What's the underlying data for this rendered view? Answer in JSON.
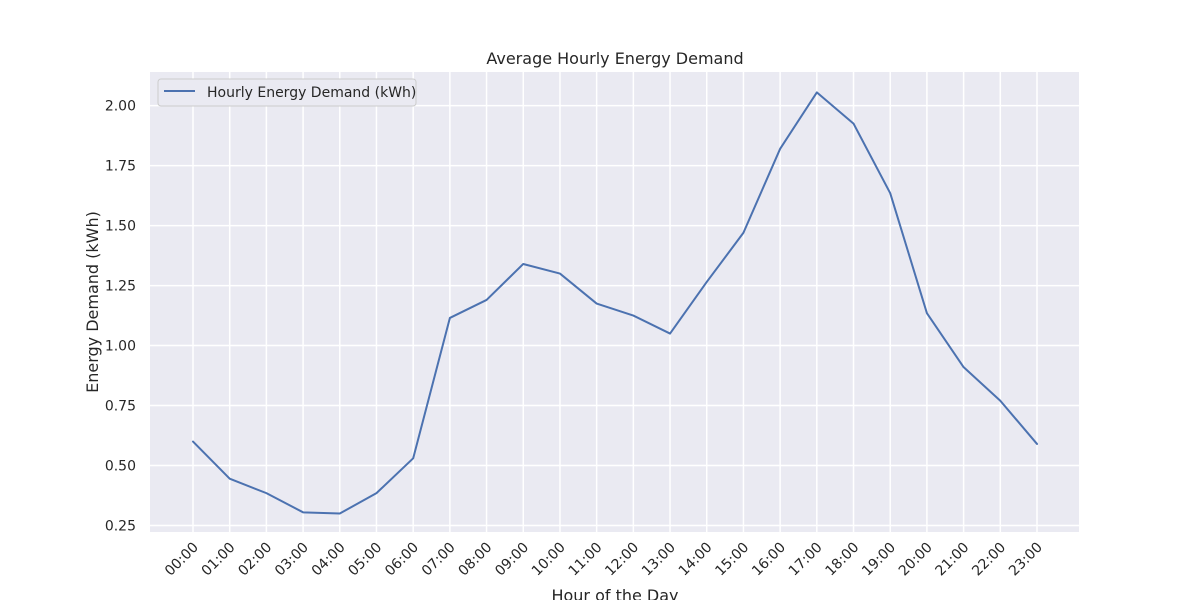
{
  "chart_data": {
    "type": "line",
    "title": "Average Hourly Energy Demand",
    "xlabel": "Hour of the Day",
    "ylabel": "Energy Demand (kWh)",
    "categories": [
      "00:00",
      "01:00",
      "02:00",
      "03:00",
      "04:00",
      "05:00",
      "06:00",
      "07:00",
      "08:00",
      "09:00",
      "10:00",
      "11:00",
      "12:00",
      "13:00",
      "14:00",
      "15:00",
      "16:00",
      "17:00",
      "18:00",
      "19:00",
      "20:00",
      "21:00",
      "22:00",
      "23:00"
    ],
    "series": [
      {
        "name": "Hourly Energy Demand (kWh)",
        "color": "#4c72b0",
        "values": [
          0.6,
          0.445,
          0.385,
          0.305,
          0.3,
          0.385,
          0.53,
          1.115,
          1.19,
          1.34,
          1.3,
          1.175,
          1.125,
          1.05,
          1.265,
          1.47,
          1.82,
          2.055,
          1.925,
          1.635,
          1.135,
          0.91,
          0.77,
          0.59
        ]
      }
    ],
    "yticks": [
      0.25,
      0.5,
      0.75,
      1.0,
      1.25,
      1.5,
      1.75,
      2.0
    ],
    "ytick_labels": [
      "0.25",
      "0.50",
      "0.75",
      "1.00",
      "1.25",
      "1.50",
      "1.75",
      "2.00"
    ],
    "ylim": [
      0.223,
      2.14
    ],
    "grid": true,
    "legend": "upper-left",
    "colors": {
      "plot_background": "#eaeaf2",
      "grid": "#ffffff",
      "text": "#262626"
    }
  }
}
